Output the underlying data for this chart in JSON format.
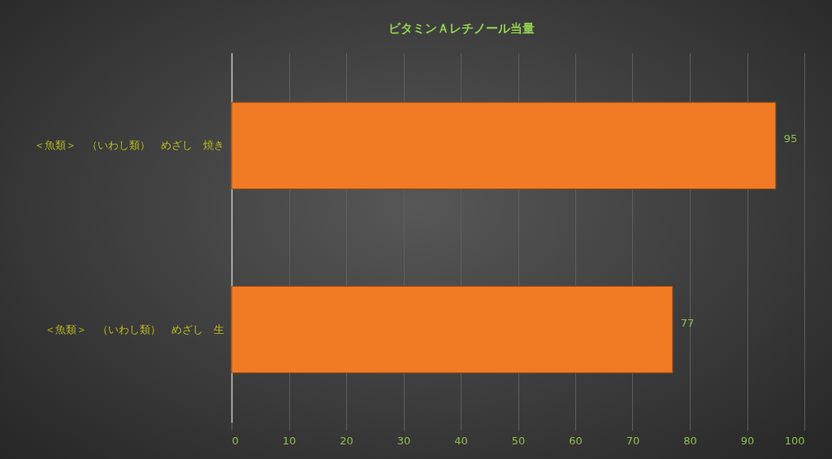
{
  "chart_data": {
    "type": "bar",
    "orientation": "horizontal",
    "title": "ビタミンＡレチノール当量",
    "categories": [
      "＜魚類＞　（いわし類）　めざし　焼き",
      "＜魚類＞　（いわし類）　めざし　生"
    ],
    "values": [
      95,
      77
    ],
    "color": "#f07b24",
    "xlim": [
      0,
      100
    ],
    "xticks": [
      0,
      10,
      20,
      30,
      40,
      50,
      60,
      70,
      80,
      90,
      100
    ],
    "grid": "x",
    "data_labels": true
  }
}
